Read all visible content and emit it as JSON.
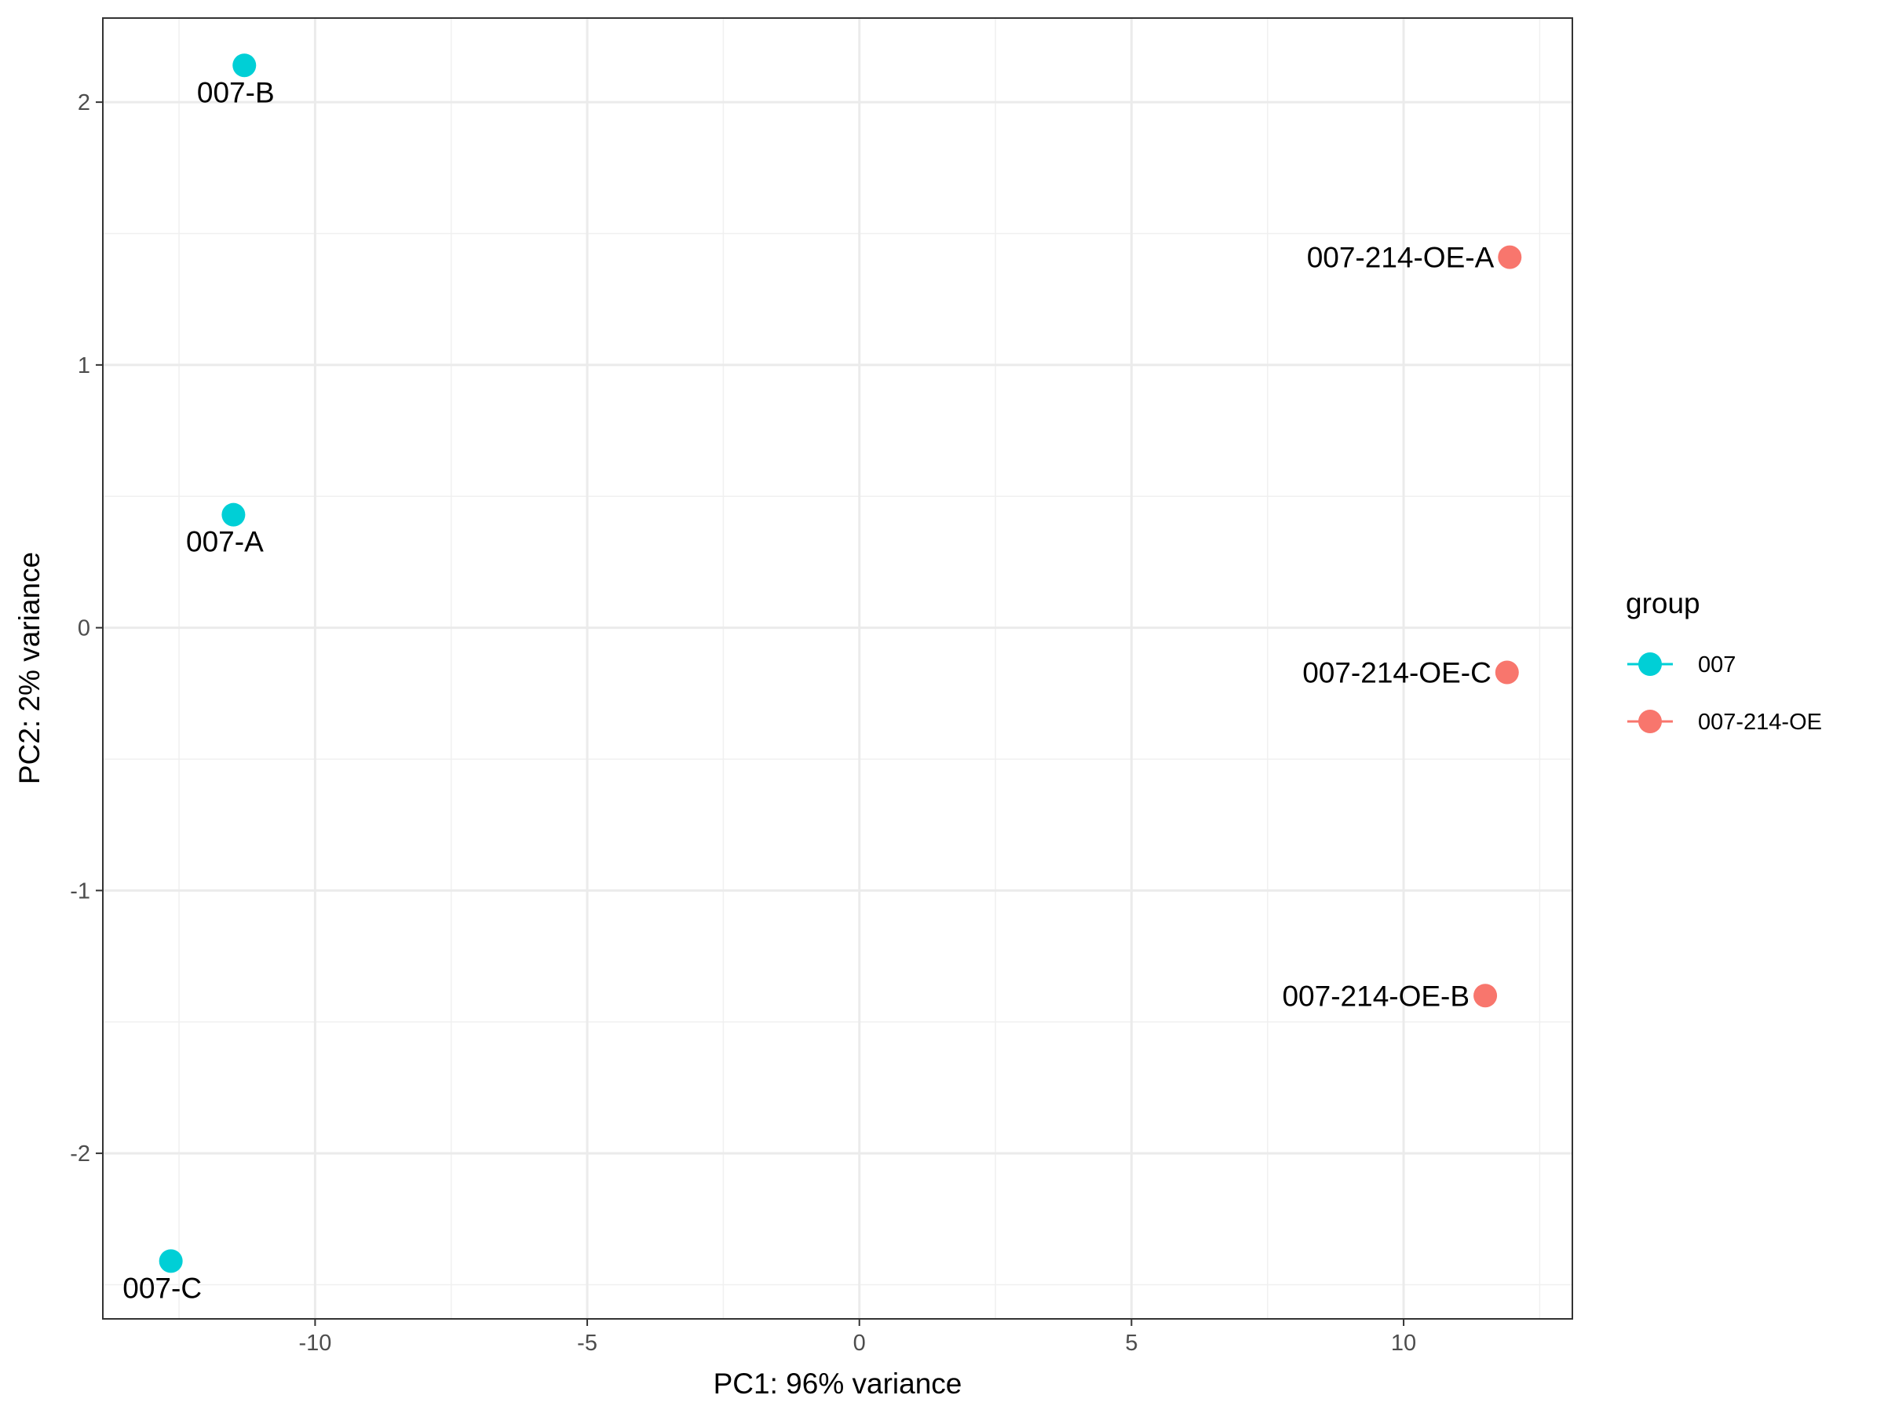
{
  "chart_data": {
    "type": "scatter",
    "xlabel": "PC1: 96% variance",
    "ylabel": "PC2: 2% variance",
    "xlim": [
      -13.9,
      13.1
    ],
    "ylim": [
      -2.63,
      2.32
    ],
    "x_major_ticks": [
      -10,
      -5,
      0,
      5,
      10
    ],
    "y_major_ticks": [
      -2,
      -1,
      0,
      1,
      2
    ],
    "x_tick_labels": [
      "-10",
      "-5",
      "0",
      "5",
      "10"
    ],
    "y_tick_labels": [
      "-2",
      "-1",
      "0",
      "1",
      "2"
    ],
    "grid": true,
    "legend": {
      "title": "group",
      "position": "right",
      "entries": [
        {
          "label": "007",
          "color": "#00CFD6"
        },
        {
          "label": "007-214-OE",
          "color": "#F8766D"
        }
      ]
    },
    "series": [
      {
        "name": "007",
        "color": "#00CFD6",
        "points": [
          {
            "label": "007-B",
            "x": -11.3,
            "y": 2.14
          },
          {
            "label": "007-A",
            "x": -11.5,
            "y": 0.43
          },
          {
            "label": "007-C",
            "x": -12.65,
            "y": -2.41
          }
        ]
      },
      {
        "name": "007-214-OE",
        "color": "#F8766D",
        "points": [
          {
            "label": "007-214-OE-A",
            "x": 11.95,
            "y": 1.41
          },
          {
            "label": "007-214-OE-C",
            "x": 11.9,
            "y": -0.17
          },
          {
            "label": "007-214-OE-B",
            "x": 11.5,
            "y": -1.4
          }
        ]
      }
    ]
  }
}
